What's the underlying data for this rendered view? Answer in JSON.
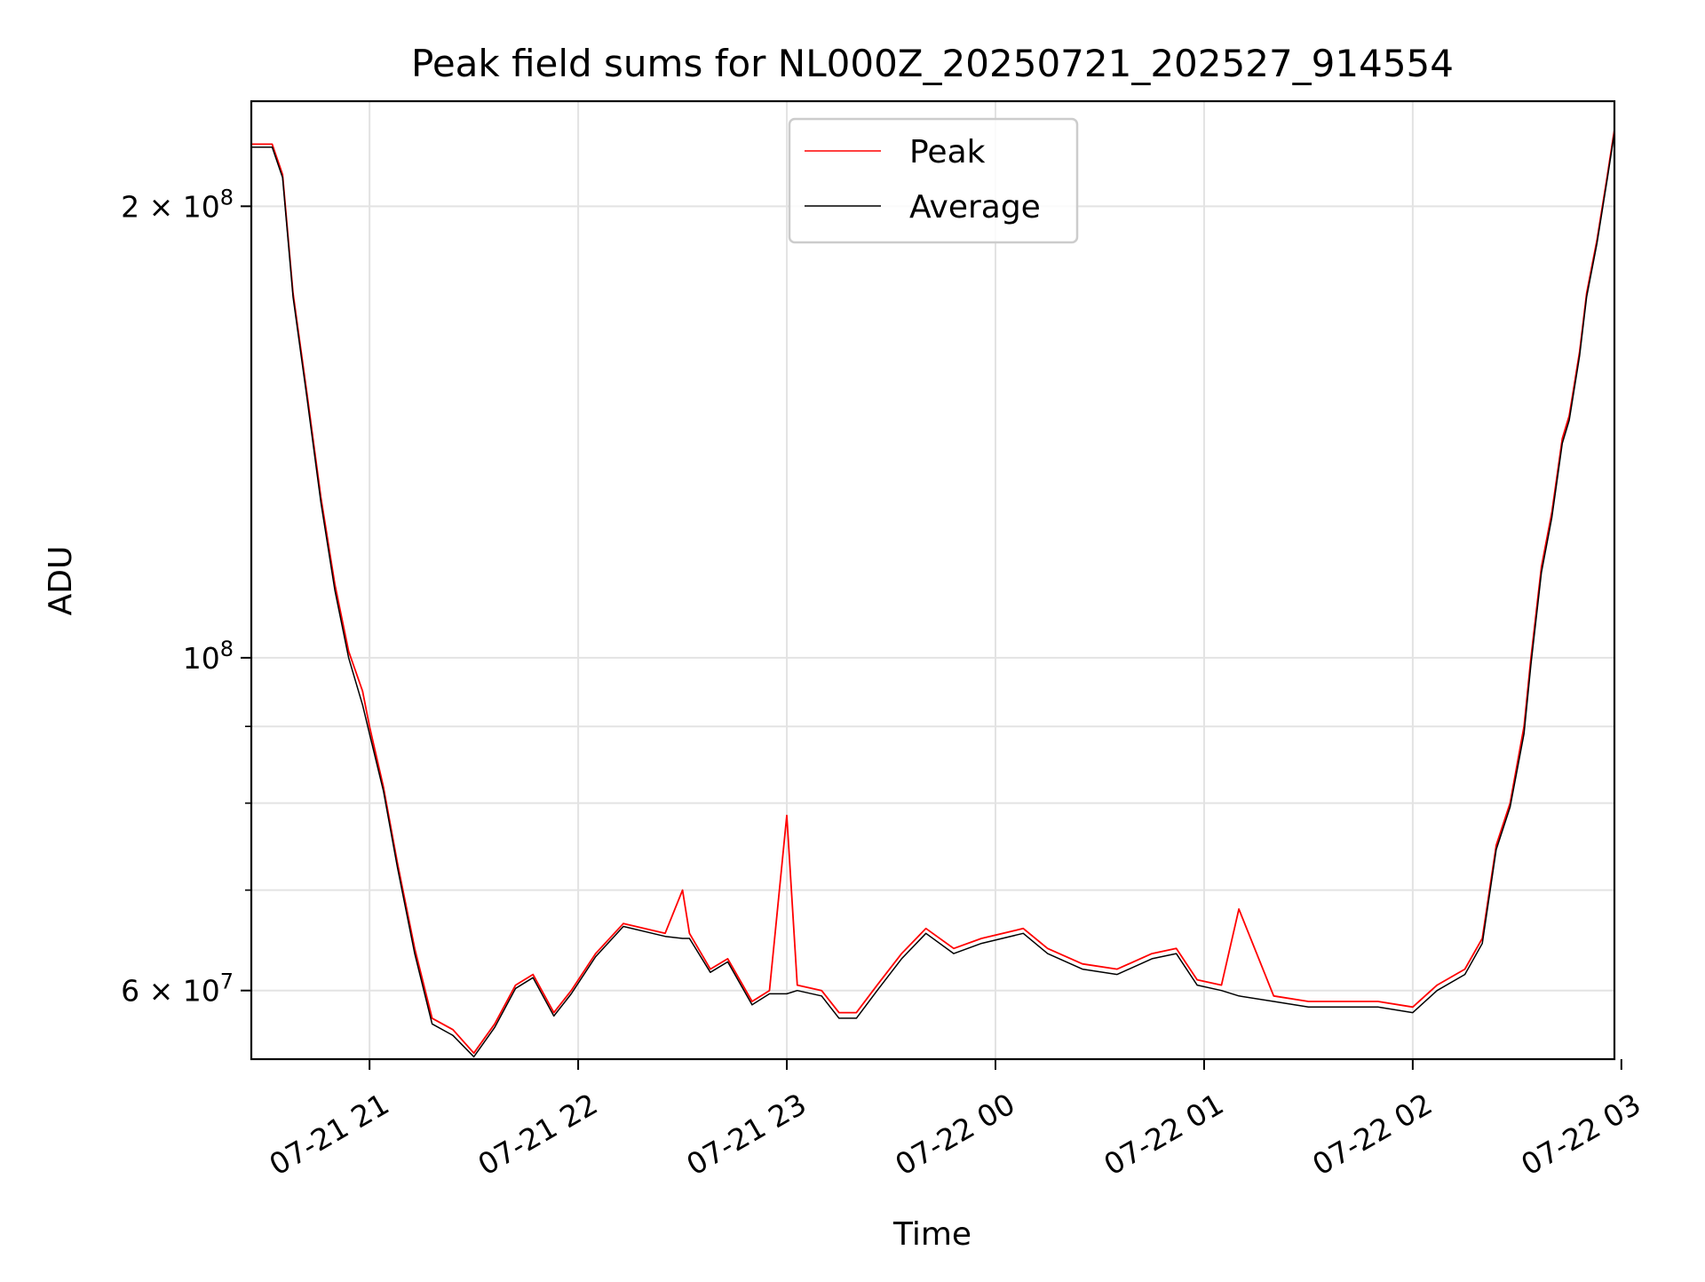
{
  "chart_data": {
    "type": "line",
    "title": "Peak field sums for NL000Z_20250721_202527_914554",
    "xlabel": "Time",
    "ylabel": "ADU",
    "yscale": "log",
    "grid": true,
    "legend_placement": "upper-center",
    "xlim": [
      "2025-07-21 20:26",
      "2025-07-22 02:58"
    ],
    "ylim": [
      54000000,
      235000000
    ],
    "x_ticks": [
      {
        "value": "2025-07-21 21:00",
        "label": "07-21 21"
      },
      {
        "value": "2025-07-21 22:00",
        "label": "07-21 22"
      },
      {
        "value": "2025-07-21 23:00",
        "label": "07-21 23"
      },
      {
        "value": "2025-07-22 00:00",
        "label": "07-22 00"
      },
      {
        "value": "2025-07-22 01:00",
        "label": "07-22 01"
      },
      {
        "value": "2025-07-22 02:00",
        "label": "07-22 02"
      },
      {
        "value": "2025-07-22 03:00",
        "label": "07-22 03"
      }
    ],
    "y_major_ticks": [
      {
        "value": 60000000,
        "mantissa": "6 × 10",
        "exponent": "7"
      },
      {
        "value": 100000000,
        "mantissa": "10",
        "exponent": "8"
      },
      {
        "value": 200000000,
        "mantissa": "2 × 10",
        "exponent": "8"
      }
    ],
    "y_minor_ticks": [
      70000000,
      80000000,
      90000000
    ],
    "series": [
      {
        "name": "Peak",
        "color": "#ff0000",
        "x": [
          "2025-07-21 20:26",
          "2025-07-21 20:32",
          "2025-07-21 20:35",
          "2025-07-21 20:38",
          "2025-07-21 20:42",
          "2025-07-21 20:46",
          "2025-07-21 20:50",
          "2025-07-21 20:54",
          "2025-07-21 20:58",
          "2025-07-21 21:00",
          "2025-07-21 21:04",
          "2025-07-21 21:08",
          "2025-07-21 21:13",
          "2025-07-21 21:18",
          "2025-07-21 21:24",
          "2025-07-21 21:30",
          "2025-07-21 21:36",
          "2025-07-21 21:42",
          "2025-07-21 21:47",
          "2025-07-21 21:53",
          "2025-07-21 21:58",
          "2025-07-21 22:05",
          "2025-07-21 22:13",
          "2025-07-21 22:25",
          "2025-07-21 22:30",
          "2025-07-21 22:32",
          "2025-07-21 22:38",
          "2025-07-21 22:43",
          "2025-07-21 22:50",
          "2025-07-21 22:55",
          "2025-07-21 23:00",
          "2025-07-21 23:03",
          "2025-07-21 23:10",
          "2025-07-21 23:15",
          "2025-07-21 23:20",
          "2025-07-21 23:26",
          "2025-07-21 23:33",
          "2025-07-21 23:40",
          "2025-07-21 23:48",
          "2025-07-21 23:56",
          "2025-07-22 00:08",
          "2025-07-22 00:15",
          "2025-07-22 00:25",
          "2025-07-22 00:35",
          "2025-07-22 00:45",
          "2025-07-22 00:52",
          "2025-07-22 00:58",
          "2025-07-22 01:05",
          "2025-07-22 01:10",
          "2025-07-22 01:20",
          "2025-07-22 01:30",
          "2025-07-22 01:40",
          "2025-07-22 01:50",
          "2025-07-22 02:00",
          "2025-07-22 02:07",
          "2025-07-22 02:15",
          "2025-07-22 02:20",
          "2025-07-22 02:24",
          "2025-07-22 02:28",
          "2025-07-22 02:32",
          "2025-07-22 02:34",
          "2025-07-22 02:37",
          "2025-07-22 02:40",
          "2025-07-22 02:43",
          "2025-07-22 02:45",
          "2025-07-22 02:48",
          "2025-07-22 02:50",
          "2025-07-22 02:53",
          "2025-07-22 02:56",
          "2025-07-22 02:58"
        ],
        "y": [
          220000000,
          220000000,
          210000000,
          175000000,
          150000000,
          128000000,
          112000000,
          101000000,
          95000000,
          90000000,
          82000000,
          73000000,
          64000000,
          57500000,
          56500000,
          54500000,
          57000000,
          60500000,
          61500000,
          58000000,
          60000000,
          63500000,
          66500000,
          65500000,
          70000000,
          65500000,
          62000000,
          63000000,
          59000000,
          60000000,
          78500000,
          60500000,
          60000000,
          58000000,
          58000000,
          60500000,
          63500000,
          66000000,
          64000000,
          65000000,
          66000000,
          64000000,
          62500000,
          62000000,
          63500000,
          64000000,
          61000000,
          60500000,
          68000000,
          59500000,
          59000000,
          59000000,
          59000000,
          58500000,
          60500000,
          62000000,
          65000000,
          75000000,
          80000000,
          90000000,
          100000000,
          115000000,
          125000000,
          140000000,
          145000000,
          160000000,
          175000000,
          190000000,
          210000000,
          225000000
        ]
      },
      {
        "name": "Average",
        "color": "#000000",
        "x": [
          "2025-07-21 20:26",
          "2025-07-21 20:32",
          "2025-07-21 20:35",
          "2025-07-21 20:38",
          "2025-07-21 20:42",
          "2025-07-21 20:46",
          "2025-07-21 20:50",
          "2025-07-21 20:54",
          "2025-07-21 20:58",
          "2025-07-21 21:00",
          "2025-07-21 21:04",
          "2025-07-21 21:08",
          "2025-07-21 21:13",
          "2025-07-21 21:18",
          "2025-07-21 21:24",
          "2025-07-21 21:30",
          "2025-07-21 21:36",
          "2025-07-21 21:42",
          "2025-07-21 21:47",
          "2025-07-21 21:53",
          "2025-07-21 21:58",
          "2025-07-21 22:05",
          "2025-07-21 22:13",
          "2025-07-21 22:25",
          "2025-07-21 22:30",
          "2025-07-21 22:32",
          "2025-07-21 22:38",
          "2025-07-21 22:43",
          "2025-07-21 22:50",
          "2025-07-21 22:55",
          "2025-07-21 23:00",
          "2025-07-21 23:03",
          "2025-07-21 23:10",
          "2025-07-21 23:15",
          "2025-07-21 23:20",
          "2025-07-21 23:26",
          "2025-07-21 23:33",
          "2025-07-21 23:40",
          "2025-07-21 23:48",
          "2025-07-21 23:56",
          "2025-07-22 00:08",
          "2025-07-22 00:15",
          "2025-07-22 00:25",
          "2025-07-22 00:35",
          "2025-07-22 00:45",
          "2025-07-22 00:52",
          "2025-07-22 00:58",
          "2025-07-22 01:05",
          "2025-07-22 01:10",
          "2025-07-22 01:20",
          "2025-07-22 01:30",
          "2025-07-22 01:40",
          "2025-07-22 01:50",
          "2025-07-22 02:00",
          "2025-07-22 02:07",
          "2025-07-22 02:15",
          "2025-07-22 02:20",
          "2025-07-22 02:24",
          "2025-07-22 02:28",
          "2025-07-22 02:32",
          "2025-07-22 02:34",
          "2025-07-22 02:37",
          "2025-07-22 02:40",
          "2025-07-22 02:43",
          "2025-07-22 02:45",
          "2025-07-22 02:48",
          "2025-07-22 02:50",
          "2025-07-22 02:53",
          "2025-07-22 02:56",
          "2025-07-22 02:58"
        ],
        "y": [
          219000000,
          219000000,
          209000000,
          174000000,
          149000000,
          127000000,
          111000000,
          100000000,
          93000000,
          89000000,
          81500000,
          72500000,
          63500000,
          57000000,
          56000000,
          54200000,
          56700000,
          60200000,
          61200000,
          57700000,
          59700000,
          63200000,
          66200000,
          65200000,
          65000000,
          65000000,
          61700000,
          62700000,
          58700000,
          59700000,
          59700000,
          60000000,
          59500000,
          57500000,
          57500000,
          60000000,
          63000000,
          65500000,
          63500000,
          64500000,
          65500000,
          63500000,
          62000000,
          61500000,
          63000000,
          63500000,
          60500000,
          60000000,
          59500000,
          59000000,
          58500000,
          58500000,
          58500000,
          58000000,
          60000000,
          61500000,
          64500000,
          74500000,
          79500000,
          89000000,
          99000000,
          114000000,
          124000000,
          139000000,
          144000000,
          159000000,
          174000000,
          189000000,
          209000000,
          224000000
        ]
      }
    ]
  }
}
